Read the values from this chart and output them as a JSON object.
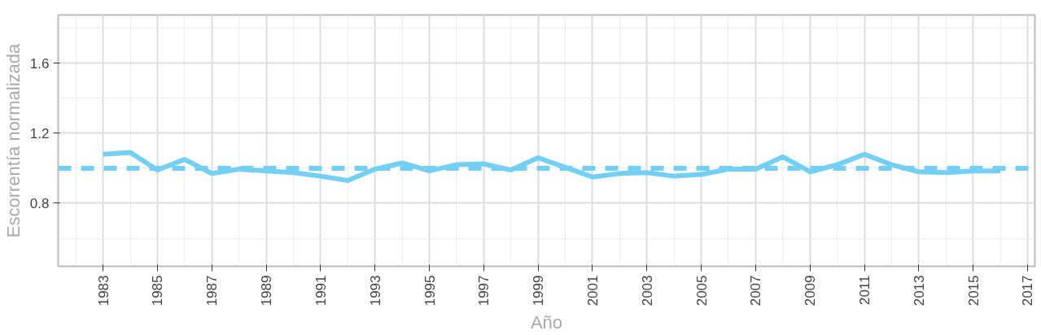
{
  "chart_data": {
    "type": "line",
    "xlabel": "Año",
    "ylabel": "Escorrentía normalizada",
    "x": [
      1983,
      1984,
      1985,
      1986,
      1987,
      1988,
      1989,
      1990,
      1991,
      1992,
      1993,
      1994,
      1995,
      1996,
      1997,
      1998,
      1999,
      2000,
      2001,
      2002,
      2003,
      2004,
      2005,
      2006,
      2007,
      2008,
      2009,
      2010,
      2011,
      2012,
      2013,
      2014,
      2015,
      2016
    ],
    "series": [
      {
        "color": "#74cff5",
        "values": [
          1.08,
          1.09,
          0.99,
          1.05,
          0.97,
          0.995,
          0.985,
          0.975,
          0.955,
          0.93,
          0.995,
          1.03,
          0.985,
          1.02,
          1.025,
          0.99,
          1.06,
          1.005,
          0.95,
          0.97,
          0.975,
          0.955,
          0.965,
          0.995,
          0.995,
          1.065,
          0.98,
          1.02,
          1.08,
          1.02,
          0.98,
          0.975,
          0.985,
          0.985
        ]
      }
    ],
    "ref_lines": [
      {
        "axis": "y",
        "value": 1.0,
        "color": "#74cff5",
        "line_style": "dashed"
      }
    ],
    "xlim": [
      1981.35,
      2017.27
    ],
    "ylim": [
      0.44,
      1.875
    ],
    "xticks": [
      1983,
      1985,
      1987,
      1989,
      1991,
      1993,
      1995,
      1997,
      1999,
      2001,
      2003,
      2005,
      2007,
      2009,
      2011,
      2013,
      2015,
      2017
    ],
    "yticks": [
      0.8,
      1.2,
      1.6
    ],
    "grid": true,
    "line_style": "solid",
    "marker": "none"
  }
}
